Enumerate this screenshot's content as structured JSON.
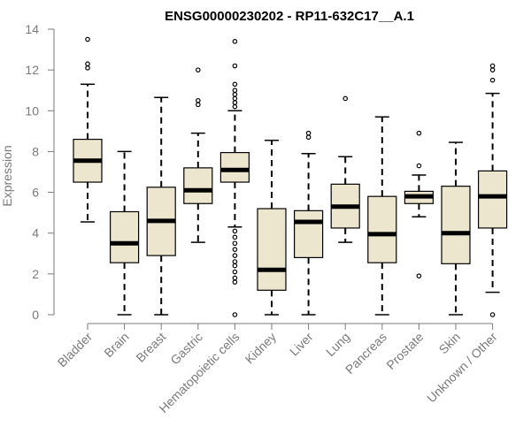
{
  "chart_data": {
    "type": "box",
    "title": "ENSG00000230202 - RP11-632C17__A.1",
    "xlabel": "",
    "ylabel": "Expression",
    "ylim": [
      0,
      14
    ],
    "yticks": [
      0,
      2,
      4,
      6,
      8,
      10,
      12,
      14
    ],
    "box_color": "#ede6cf",
    "categories": [
      "Bladder",
      "Brain",
      "Breast",
      "Gastric",
      "Hematopoietic cells",
      "Kidney",
      "Liver",
      "Lung",
      "Pancreas",
      "Prostate",
      "Skin",
      "Unknown / Other"
    ],
    "boxes": [
      {
        "whisker_low": 4.55,
        "q1": 6.5,
        "median": 7.55,
        "q3": 8.6,
        "whisker_high": 11.3,
        "outliers": [
          12.1,
          12.3,
          13.5
        ]
      },
      {
        "whisker_low": 0.0,
        "q1": 2.55,
        "median": 3.5,
        "q3": 5.05,
        "whisker_high": 8.0,
        "outliers": []
      },
      {
        "whisker_low": 0.0,
        "q1": 2.9,
        "median": 4.6,
        "q3": 6.25,
        "whisker_high": 10.65,
        "outliers": []
      },
      {
        "whisker_low": 3.55,
        "q1": 5.45,
        "median": 6.1,
        "q3": 7.2,
        "whisker_high": 8.9,
        "outliers": [
          10.3,
          10.5,
          12.0
        ]
      },
      {
        "whisker_low": 4.3,
        "q1": 6.5,
        "median": 7.1,
        "q3": 7.95,
        "whisker_high": 10.0,
        "outliers": [
          0.0,
          1.6,
          1.8,
          2.1,
          2.4,
          2.6,
          2.9,
          3.2,
          3.5,
          3.8,
          4.1,
          10.2,
          10.4,
          10.6,
          10.8,
          11.0,
          11.3,
          12.2,
          13.4
        ]
      },
      {
        "whisker_low": 0.0,
        "q1": 1.2,
        "median": 2.2,
        "q3": 5.2,
        "whisker_high": 8.55,
        "outliers": []
      },
      {
        "whisker_low": 0.0,
        "q1": 2.8,
        "median": 4.55,
        "q3": 5.1,
        "whisker_high": 7.9,
        "outliers": [
          8.7,
          8.9
        ]
      },
      {
        "whisker_low": 3.55,
        "q1": 4.25,
        "median": 5.3,
        "q3": 6.4,
        "whisker_high": 7.75,
        "outliers": [
          10.6
        ]
      },
      {
        "whisker_low": 0.0,
        "q1": 2.55,
        "median": 3.95,
        "q3": 5.8,
        "whisker_high": 9.7,
        "outliers": []
      },
      {
        "whisker_low": 4.8,
        "q1": 5.45,
        "median": 5.8,
        "q3": 6.05,
        "whisker_high": 6.85,
        "outliers": [
          1.9,
          7.3,
          8.9
        ]
      },
      {
        "whisker_low": 0.0,
        "q1": 2.5,
        "median": 4.0,
        "q3": 6.3,
        "whisker_high": 8.45,
        "outliers": []
      },
      {
        "whisker_low": 1.1,
        "q1": 4.25,
        "median": 5.8,
        "q3": 7.05,
        "whisker_high": 10.85,
        "outliers": [
          0.0,
          11.5,
          12.0,
          12.2
        ]
      }
    ]
  }
}
